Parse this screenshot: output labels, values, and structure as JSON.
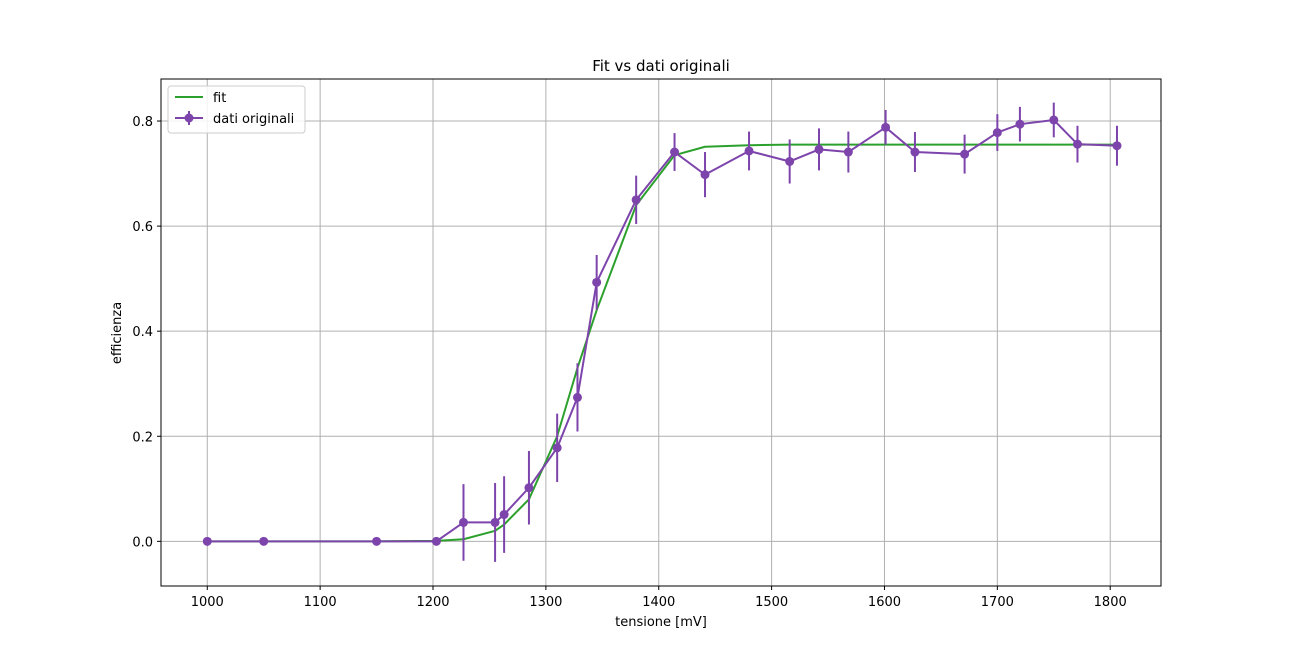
{
  "chart_data": {
    "type": "line",
    "title": "Fit vs dati originali",
    "xlabel": "tensione [mV]",
    "ylabel": "efficienza",
    "xlim": [
      959,
      1845
    ],
    "ylim": [
      -0.085,
      0.88
    ],
    "xticks": [
      1000,
      1100,
      1200,
      1300,
      1400,
      1500,
      1600,
      1700,
      1800
    ],
    "yticks": [
      0.0,
      0.2,
      0.4,
      0.6,
      0.8
    ],
    "xtick_labels": [
      "1000",
      "1100",
      "1200",
      "1300",
      "1400",
      "1500",
      "1600",
      "1700",
      "1800"
    ],
    "ytick_labels": [
      "0.0",
      "0.2",
      "0.4",
      "0.6",
      "0.8"
    ],
    "grid": true,
    "legend_position": "top-left",
    "series": [
      {
        "name": "fit",
        "kind": "line",
        "color": "#2ca02c",
        "x": [
          1000,
          1050,
          1150,
          1203,
          1227,
          1255,
          1263,
          1285,
          1310,
          1328,
          1345,
          1380,
          1414,
          1441,
          1480,
          1516,
          1542,
          1568,
          1601,
          1627,
          1671,
          1700,
          1720,
          1750,
          1771,
          1806
        ],
        "y": [
          0.0,
          0.0,
          0.0,
          0.001,
          0.004,
          0.02,
          0.032,
          0.08,
          0.2,
          0.33,
          0.44,
          0.64,
          0.735,
          0.751,
          0.754,
          0.755,
          0.755,
          0.755,
          0.755,
          0.755,
          0.755,
          0.755,
          0.755,
          0.755,
          0.755,
          0.755
        ]
      },
      {
        "name": "dati originali",
        "kind": "errorbar",
        "color": "#7d44ab",
        "x": [
          1000,
          1050,
          1150,
          1203,
          1227,
          1255,
          1263,
          1285,
          1310,
          1328,
          1345,
          1380,
          1414,
          1441,
          1480,
          1516,
          1542,
          1568,
          1601,
          1627,
          1671,
          1700,
          1720,
          1750,
          1771,
          1806
        ],
        "y": [
          0.0,
          0.0,
          0.0,
          0.0,
          0.036,
          0.036,
          0.051,
          0.102,
          0.178,
          0.274,
          0.493,
          0.65,
          0.741,
          0.698,
          0.743,
          0.723,
          0.746,
          0.741,
          0.788,
          0.741,
          0.737,
          0.778,
          0.794,
          0.802,
          0.756,
          0.753
        ],
        "yerr": [
          0.0,
          0.0,
          0.0,
          0.0,
          0.073,
          0.075,
          0.073,
          0.07,
          0.065,
          0.065,
          0.052,
          0.046,
          0.036,
          0.043,
          0.037,
          0.042,
          0.04,
          0.039,
          0.033,
          0.038,
          0.037,
          0.035,
          0.033,
          0.033,
          0.035,
          0.038
        ]
      }
    ]
  }
}
